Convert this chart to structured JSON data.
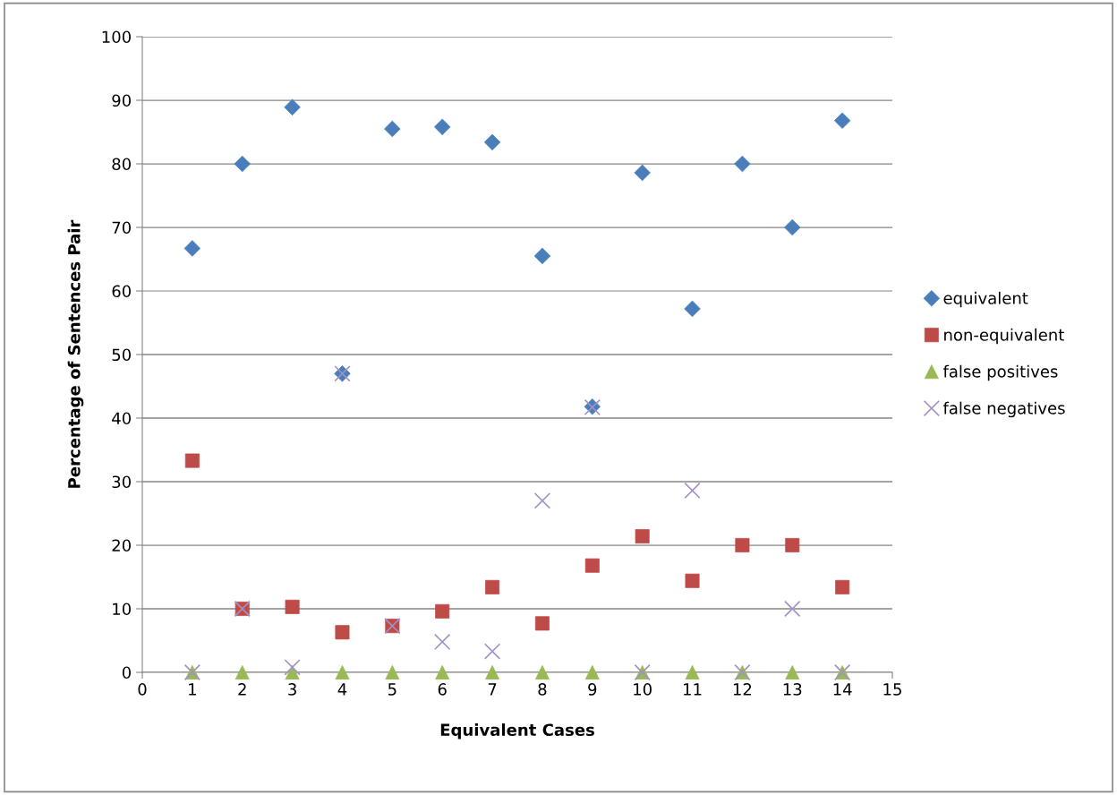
{
  "chart_data": {
    "type": "scatter",
    "xlabel": "Equivalent Cases",
    "ylabel": "Percentage of Sentences Pair",
    "x": [
      1,
      2,
      3,
      4,
      5,
      6,
      7,
      8,
      9,
      10,
      11,
      12,
      13,
      14
    ],
    "series": [
      {
        "name": "equivalent",
        "color": "#4a7ebb",
        "marker": "diamond",
        "values": [
          66.7,
          80,
          88.9,
          47,
          85.5,
          85.8,
          83.4,
          65.5,
          41.8,
          78.6,
          57.2,
          80,
          70,
          86.8
        ]
      },
      {
        "name": "non-equivalent",
        "color": "#be4b48",
        "marker": "square",
        "values": [
          33.3,
          10,
          10.3,
          6.3,
          7.3,
          9.6,
          13.4,
          7.7,
          16.8,
          21.4,
          14.4,
          20,
          20,
          13.4
        ]
      },
      {
        "name": "false positives",
        "color": "#98b954",
        "marker": "triangle",
        "values": [
          0,
          0,
          0,
          0,
          0,
          0,
          0,
          0,
          0,
          0,
          0,
          0,
          0,
          0
        ]
      },
      {
        "name": "false negatives",
        "color": "#a391c4",
        "marker": "cross",
        "values": [
          0,
          10,
          0.8,
          47,
          7.3,
          4.8,
          3.3,
          27,
          41.7,
          0,
          28.6,
          0,
          10,
          0
        ]
      }
    ],
    "xlim": [
      0,
      15
    ],
    "xticks": [
      0,
      1,
      2,
      3,
      4,
      5,
      6,
      7,
      8,
      9,
      10,
      11,
      12,
      13,
      14,
      15
    ],
    "ylim": [
      0,
      100
    ],
    "yticks": [
      0,
      10,
      20,
      30,
      40,
      50,
      60,
      70,
      80,
      90,
      100
    ],
    "grid": "y",
    "legend": "right"
  }
}
